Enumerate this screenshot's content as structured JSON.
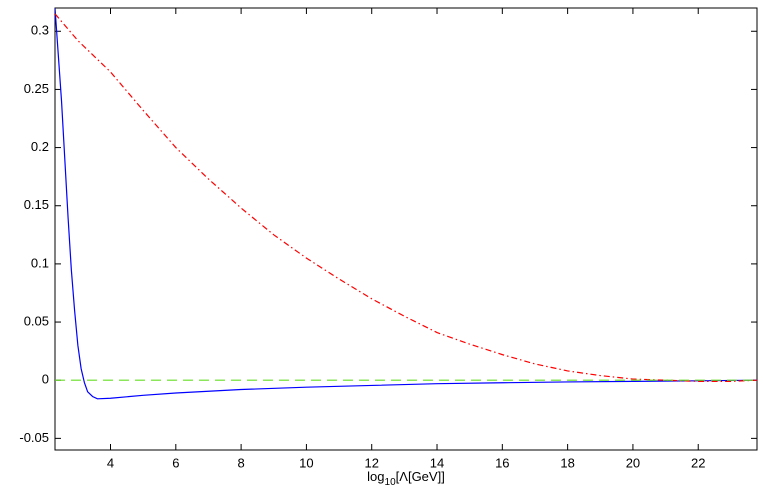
{
  "chart_data": {
    "type": "line",
    "xlabel": [
      "log",
      "10",
      "[Λ[GeV]]"
    ],
    "xlim": [
      2.3,
      23.8
    ],
    "ylim": [
      -0.06,
      0.32
    ],
    "xticks": [
      4,
      6,
      8,
      10,
      12,
      14,
      16,
      18,
      20,
      22
    ],
    "yticks": [
      -0.05,
      0,
      0.05,
      0.1,
      0.15,
      0.2,
      0.25,
      0.3
    ],
    "grid": false,
    "series": [
      {
        "color": "#0000ff",
        "dash": "none",
        "x": [
          2.3,
          2.4,
          2.5,
          2.6,
          2.7,
          2.8,
          2.9,
          3.0,
          3.1,
          3.2,
          3.3,
          3.45,
          3.6,
          4,
          5,
          6,
          8,
          10,
          12,
          14,
          16,
          18,
          20,
          22,
          23.8
        ],
        "values": [
          0.32,
          0.28,
          0.24,
          0.19,
          0.14,
          0.095,
          0.06,
          0.03,
          0.01,
          -0.002,
          -0.01,
          -0.014,
          -0.016,
          -0.0155,
          -0.013,
          -0.011,
          -0.008,
          -0.006,
          -0.0045,
          -0.003,
          -0.0022,
          -0.0015,
          -0.001,
          -0.0005,
          0
        ]
      },
      {
        "color": "#ff0000",
        "dash": "6 3 1.5 3",
        "x": [
          2.3,
          3,
          4,
          5,
          6,
          7,
          8,
          9,
          10,
          11,
          12,
          13,
          14,
          15,
          16,
          17,
          18,
          19,
          20,
          21,
          22,
          23,
          23.8
        ],
        "values": [
          0.315,
          0.292,
          0.265,
          0.232,
          0.2,
          0.173,
          0.148,
          0.125,
          0.105,
          0.087,
          0.07,
          0.055,
          0.041,
          0.031,
          0.022,
          0.014,
          0.008,
          0.004,
          0.001,
          0,
          -0.001,
          -0.001,
          0
        ]
      },
      {
        "color": "#66dd22",
        "dash": "10 6",
        "x": [
          2.3,
          23.8
        ],
        "values": [
          0,
          0
        ]
      }
    ]
  }
}
